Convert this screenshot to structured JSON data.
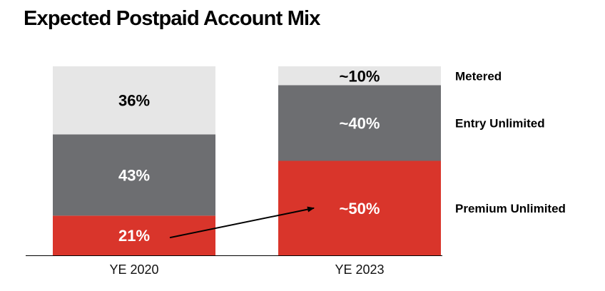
{
  "chart_data": {
    "type": "bar",
    "stacked": true,
    "normalized": true,
    "title": "Expected Postpaid Account Mix",
    "xlabel": "",
    "ylabel": "",
    "ylim": [
      0,
      100
    ],
    "grid": false,
    "legend_placement": "right",
    "categories": [
      "YE 2020",
      "YE 2023"
    ],
    "series": [
      {
        "name": "Premium Unlimited",
        "color": "#d9352b",
        "text_color": "#ffffff",
        "values": [
          21,
          50
        ],
        "labels": [
          "21%",
          "~50%"
        ]
      },
      {
        "name": "Entry Unlimited",
        "color": "#6d6e71",
        "text_color": "#ffffff",
        "values": [
          43,
          40
        ],
        "labels": [
          "43%",
          "~40%"
        ]
      },
      {
        "name": "Metered",
        "color": "#e6e6e6",
        "text_color": "#000000",
        "values": [
          36,
          10
        ],
        "labels": [
          "36%",
          "~10%"
        ]
      }
    ],
    "annotations": [
      {
        "type": "arrow",
        "from": {
          "category": "YE 2020",
          "series": "Premium Unlimited"
        },
        "to": {
          "category": "YE 2023",
          "series": "Premium Unlimited"
        }
      }
    ]
  }
}
